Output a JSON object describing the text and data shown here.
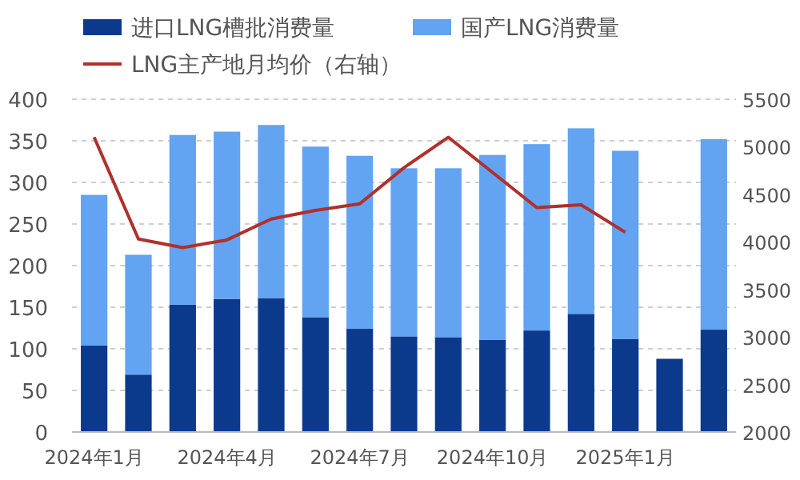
{
  "chart_data": {
    "type": "bar",
    "stacked": true,
    "categories": [
      "2024年1月",
      null,
      null,
      "2024年4月",
      null,
      null,
      "2024年7月",
      null,
      null,
      "2024年10月",
      null,
      null,
      "2025年1月",
      null,
      null
    ],
    "series": [
      {
        "name": "进口LNG槽批消费量",
        "color": "#0b3a8d",
        "values": [
          104,
          69,
          153,
          160,
          161,
          138,
          124,
          115,
          114,
          111,
          122,
          142,
          112,
          88,
          123
        ]
      },
      {
        "name": "国产LNG消费量",
        "color": "#62a3f2",
        "values": [
          181,
          144,
          204,
          201,
          208,
          205,
          208,
          202,
          203,
          222,
          224,
          223,
          226,
          null,
          229
        ]
      },
      {
        "name": "LNG主产地月均价（右轴）",
        "type": "line",
        "axis": "y2",
        "color": "#b0302a",
        "values": [
          5100,
          4030,
          3940,
          4020,
          4240,
          4330,
          4400,
          4780,
          5100,
          4730,
          4360,
          4390,
          4100,
          null,
          null
        ]
      }
    ],
    "ylim": [
      0,
      400
    ],
    "yticks": [
      0,
      50,
      100,
      150,
      200,
      250,
      300,
      350,
      400
    ],
    "y2lim": [
      2000,
      5500
    ],
    "y2ticks": [
      2000,
      2500,
      3000,
      3500,
      4000,
      4500,
      5000,
      5500
    ],
    "grid": "y",
    "legend": "top left"
  }
}
